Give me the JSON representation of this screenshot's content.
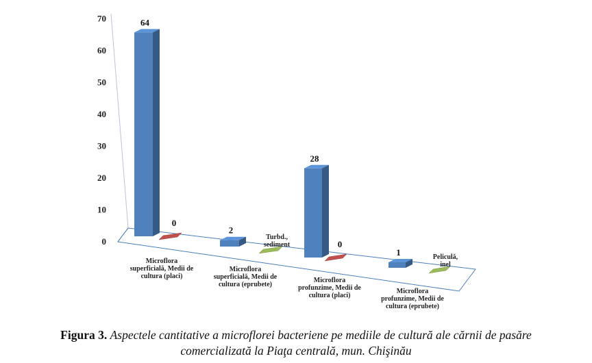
{
  "chart_data": {
    "type": "bar",
    "categories": [
      "Microflora superficială, Medii de cultura (placi)",
      "Microflora superficială, Medii de cultura (eprubete)",
      "Microflora profunzime, Medii de cultura (placi)",
      "Microflora profunzime, Medii de cultura (eprubete)"
    ],
    "category_lines": [
      [
        "Microflora",
        "superficială, Medii de",
        "cultura (placi)"
      ],
      [
        "Microflora",
        "superficială, Medii de",
        "cultura (eprubete)"
      ],
      [
        "Microflora",
        "profunzime, Medii de",
        "cultura (placi)"
      ],
      [
        "Microflora",
        "profunzime, Medii de",
        "cultura (eprubete)"
      ]
    ],
    "series": [
      {
        "color": "#4f81bd",
        "values": [
          64,
          2,
          28,
          1
        ],
        "labels": [
          "64",
          "2",
          "28",
          "1"
        ]
      },
      {
        "color": "#c0504d",
        "values": [
          0,
          null,
          0,
          null
        ],
        "labels": [
          "0",
          "",
          "0",
          ""
        ]
      },
      {
        "color": "#9bbb59",
        "values": [
          null,
          0,
          null,
          0
        ],
        "labels": [
          "",
          "Turbd., sediment",
          "",
          "Peliculă, inel"
        ]
      }
    ],
    "annotation_lines": [
      null,
      [
        "Turbd.,",
        "sediment"
      ],
      null,
      [
        "Peliculă,",
        "inel"
      ]
    ],
    "ylim": [
      0,
      70
    ],
    "yticks": [
      0,
      10,
      20,
      30,
      40,
      50,
      60,
      70
    ],
    "ytick_labels": [
      "0",
      "10",
      "20",
      "30",
      "40",
      "50",
      "60",
      "70"
    ],
    "grid": false,
    "legend": "none"
  },
  "caption": {
    "label": "Figura 3.",
    "text_line1": "Aspectele cantitative a microflorei bacteriene pe mediile de cultură ale cărnii de pasăre",
    "text_line2": "comercializată la Piaţa centrală, mun. Chişinău"
  }
}
